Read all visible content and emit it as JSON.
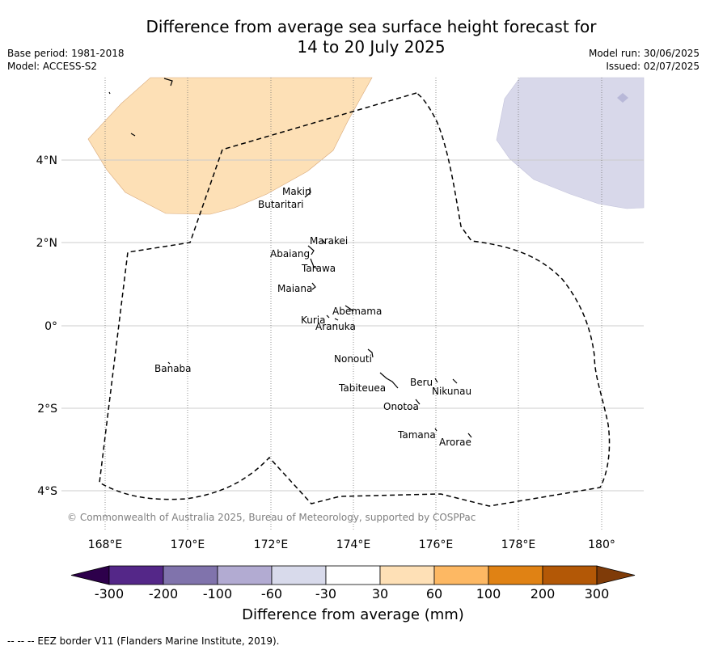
{
  "header": {
    "title_line1": "Difference from average sea surface height forecast for",
    "title_line2": "14 to 20 July 2025",
    "base_period": "Base period: 1981-2018",
    "model": "Model: ACCESS-S2",
    "model_run": "Model run: 30/06/2025",
    "issued": "Issued: 02/07/2025"
  },
  "map": {
    "longitude_ticks": [
      "168°E",
      "170°E",
      "172°E",
      "174°E",
      "176°E",
      "178°E",
      "180°"
    ],
    "latitude_ticks": [
      "4°N",
      "2°N",
      "0°",
      "2°S",
      "4°S"
    ],
    "copyright": "© Commonwealth of Australia 2025, Bureau of Meteorology, supported by COSPPac",
    "islands": [
      "Makin",
      "Butaritari",
      "Marakei",
      "Abaiang",
      "Tarawa",
      "Maiana",
      "Abemama",
      "Kuria",
      "Aranuka",
      "Nonouti",
      "Banaba",
      "Beru",
      "Nikunau",
      "Tabiteuea",
      "Onotoa",
      "Tamana",
      "Arorae"
    ],
    "colors": {
      "positive_anomaly_region": "#fde0b6",
      "negative_anomaly_region": "#d8d8ea",
      "eez_border": "#000000",
      "gridline": "#cccccc"
    }
  },
  "colorbar": {
    "ticks": [
      "-300",
      "-200",
      "-100",
      "-60",
      "-30",
      "30",
      "60",
      "100",
      "200",
      "300"
    ],
    "colors": [
      "#2d004b",
      "#542788",
      "#8073ac",
      "#b2abd2",
      "#d8daeb",
      "#ffffff",
      "#fee0b6",
      "#fdb863",
      "#e08214",
      "#b35806",
      "#7f3b08"
    ],
    "label": "Difference from average (mm)"
  },
  "footnote": "--  --  -- EEZ border V11 (Flanders Marine Institute, 2019)."
}
